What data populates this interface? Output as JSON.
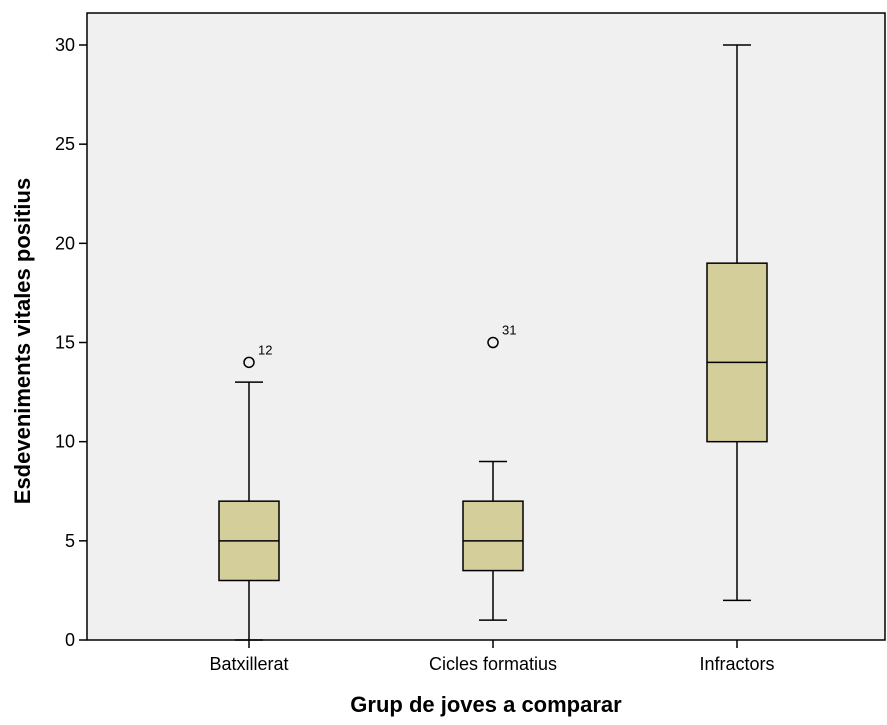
{
  "chart_data": {
    "type": "boxplot",
    "title": "",
    "xlabel": "Grup de joves a comparar",
    "ylabel": "Esdeveniments vitales positius",
    "ylim": [
      0,
      31.5
    ],
    "yticks": [
      0,
      5,
      10,
      15,
      20,
      25,
      30
    ],
    "ytick_labels": [
      "0",
      "5",
      "10",
      "15",
      "20",
      "25",
      "30"
    ],
    "grid": false,
    "legend": "none",
    "colors": {
      "plot_background": "#f0f0f0",
      "box_fill": "#d4cf9a",
      "stroke": "#000000"
    },
    "categories": [
      "Batxillerat",
      "Cicles formatius",
      "Infractors"
    ],
    "boxes": [
      {
        "min": 0,
        "q1": 3,
        "median": 5,
        "q3": 7,
        "max": 13,
        "outliers": [
          {
            "value": 14,
            "label": "12"
          }
        ]
      },
      {
        "min": 1,
        "q1": 3.5,
        "median": 5,
        "q3": 7,
        "max": 9,
        "outliers": [
          {
            "value": 15,
            "label": "31"
          }
        ]
      },
      {
        "min": 2,
        "q1": 10,
        "median": 14,
        "q3": 19,
        "max": 30,
        "outliers": []
      }
    ]
  }
}
